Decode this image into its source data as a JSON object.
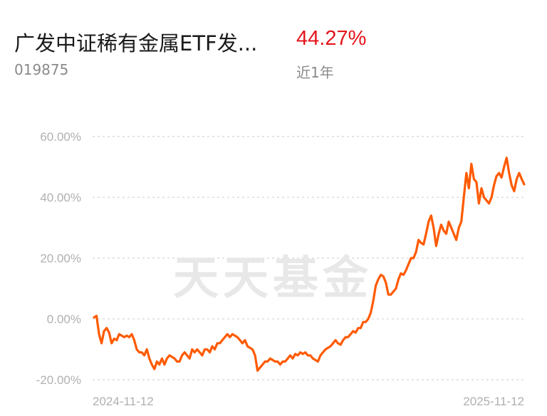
{
  "header": {
    "fund_name": "广发中证稀有金属ETF发...",
    "fund_code": "019875",
    "return_value": "44.27%",
    "period_label": "近1年"
  },
  "watermark": "天天基金",
  "colors": {
    "line": "#ff5a00",
    "return_value": "#e4151b",
    "grid": "#dcdcdc",
    "tick_text": "#b0b0b0",
    "watermark": "#e8e8e8"
  },
  "chart_data": {
    "type": "line",
    "title": "",
    "xlabel": "",
    "ylabel": "",
    "x_tick_labels": [
      "2024-11-12",
      "2025-11-12"
    ],
    "y_ticks": [
      60,
      40,
      20,
      0,
      -20
    ],
    "y_tick_labels": [
      "60.00%",
      "40.00%",
      "20.00%",
      "0.00%",
      "-20.00%"
    ],
    "ylim": [
      -20,
      60
    ],
    "grid": true,
    "series": [
      {
        "values": [
          0.5,
          1,
          -5,
          -8,
          -4,
          -3,
          -4.5,
          -8,
          -6.5,
          -7,
          -5,
          -5.5,
          -6,
          -5.5,
          -6,
          -5,
          -7,
          -10,
          -11,
          -11,
          -12,
          -10,
          -13,
          -15,
          -16.5,
          -14,
          -15,
          -13,
          -15,
          -13,
          -12,
          -12.5,
          -13,
          -14,
          -14,
          -12,
          -11,
          -12,
          -13,
          -10,
          -11,
          -10,
          -11,
          -12,
          -10,
          -10,
          -11,
          -9,
          -10,
          -8,
          -8,
          -7,
          -6,
          -5,
          -6,
          -5,
          -5.5,
          -6,
          -7,
          -8,
          -7,
          -9,
          -9.5,
          -10,
          -12,
          -17,
          -16,
          -15,
          -14,
          -14,
          -13,
          -13.5,
          -14,
          -14,
          -15,
          -14,
          -14,
          -13,
          -12,
          -13,
          -11.5,
          -12,
          -11,
          -11.5,
          -11,
          -12,
          -12,
          -13,
          -13.5,
          -14,
          -12,
          -11,
          -10,
          -9.5,
          -9,
          -8,
          -7,
          -8,
          -8.5,
          -7,
          -6,
          -6,
          -5,
          -4,
          -4.5,
          -3,
          -3,
          -1,
          -1,
          0,
          2,
          6,
          11,
          13,
          14.5,
          14,
          12,
          8,
          8,
          9,
          10,
          13,
          15,
          14.5,
          16,
          18,
          20,
          20,
          22,
          26,
          25,
          24.5,
          28,
          32,
          34,
          30,
          24,
          28,
          31,
          29,
          28,
          32,
          30,
          28,
          26,
          30,
          32,
          40,
          48,
          43,
          51,
          46,
          45,
          38,
          43,
          40,
          39,
          38,
          40,
          44,
          47,
          48,
          46.5,
          50,
          53,
          48,
          44,
          42,
          46,
          48,
          46,
          44.27
        ]
      }
    ]
  }
}
